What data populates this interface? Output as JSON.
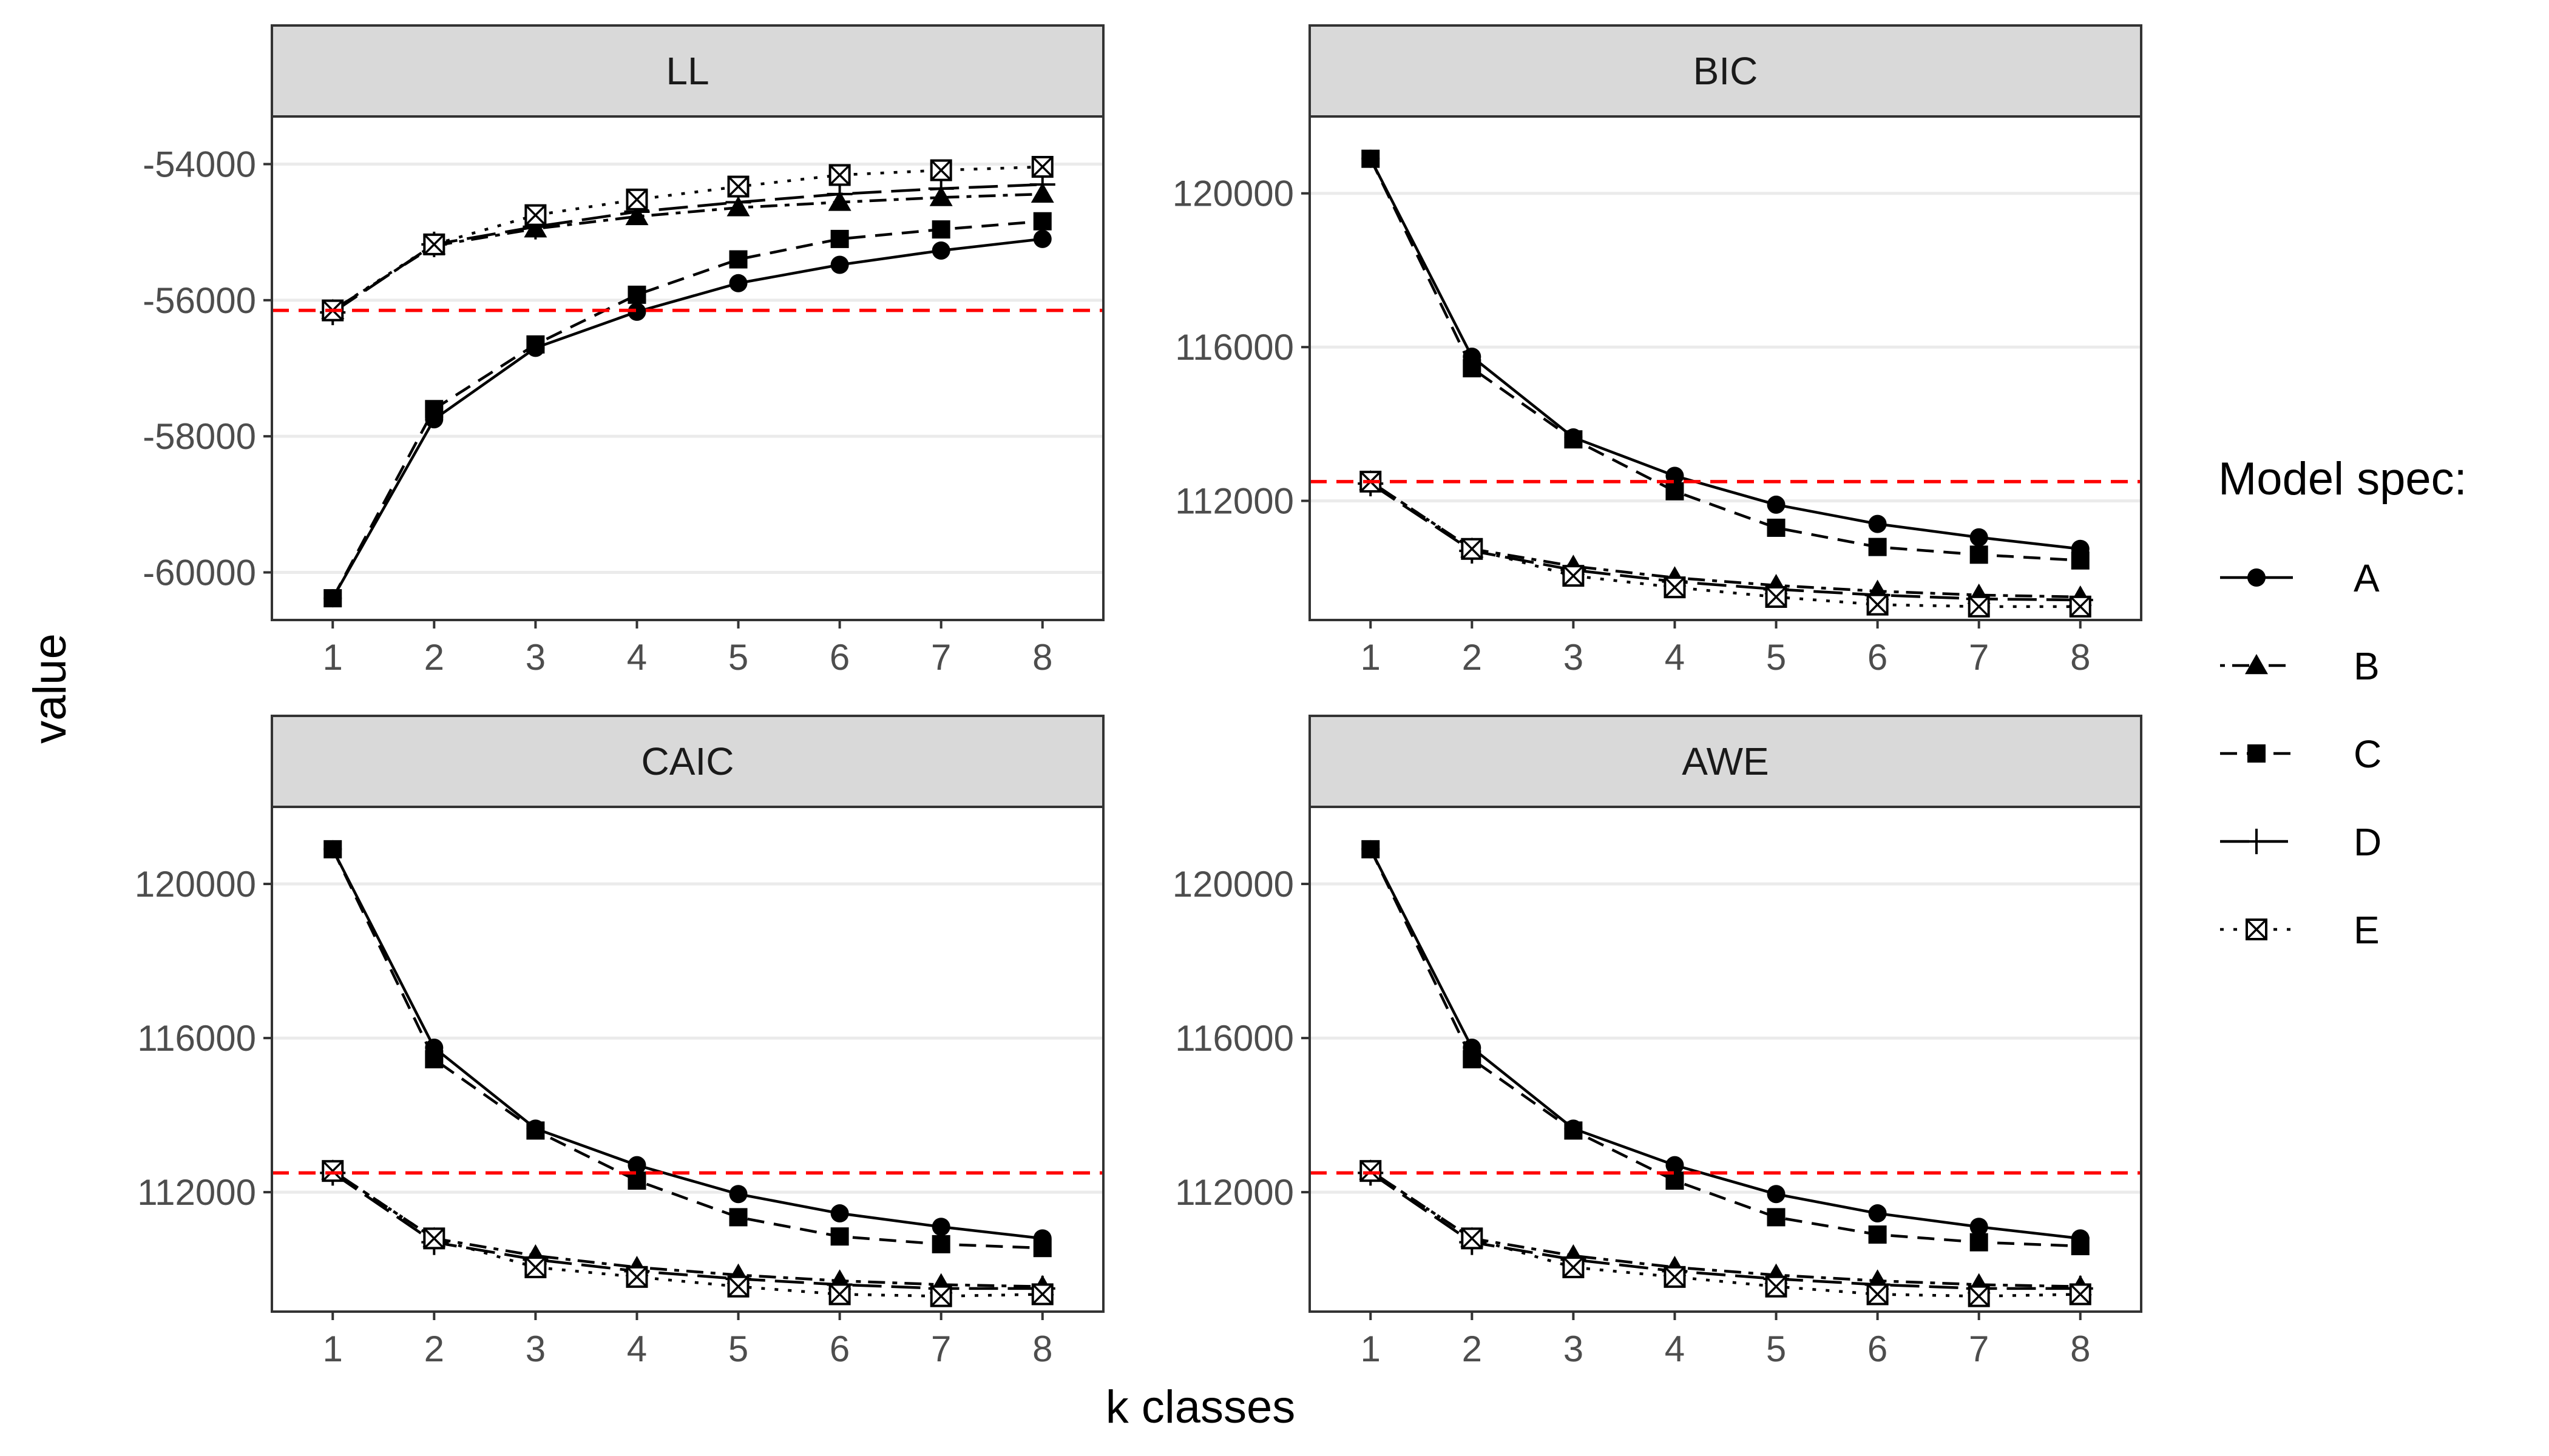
{
  "chart_data": {
    "type": "line",
    "xlabel": "k classes",
    "ylabel": "value",
    "x": [
      1,
      2,
      3,
      4,
      5,
      6,
      7,
      8
    ],
    "legend": {
      "title": "Model spec:",
      "position": "right",
      "entries": [
        "A",
        "B",
        "C",
        "D",
        "E"
      ]
    },
    "reference_line": {
      "color": "#ff0000",
      "style": "dashed"
    },
    "series_styles": {
      "A": {
        "dash": "solid",
        "marker": "circle"
      },
      "B": {
        "dash": "dotdash",
        "marker": "triangle"
      },
      "C": {
        "dash": "dashed",
        "marker": "square"
      },
      "D": {
        "dash": "longdash",
        "marker": "plus"
      },
      "E": {
        "dash": "dotted",
        "marker": "square-cross"
      }
    },
    "panels": [
      {
        "title": "LL",
        "ylim": [
          -60700,
          -53300
        ],
        "yticks": [
          -60000,
          -58000,
          -56000,
          -54000
        ],
        "ytick_labels": [
          "-60000",
          "-58000",
          "-56000",
          "-54000"
        ],
        "reference_y": -56150,
        "series": [
          {
            "name": "A",
            "values": [
              -60380,
              -57750,
              -56700,
              -56170,
              -55750,
              -55480,
              -55270,
              -55100
            ]
          },
          {
            "name": "B",
            "values": [
              -56150,
              -55200,
              -54950,
              -54770,
              -54640,
              -54560,
              -54490,
              -54440
            ]
          },
          {
            "name": "C",
            "values": [
              -60380,
              -57600,
              -56650,
              -55920,
              -55400,
              -55100,
              -54960,
              -54840
            ]
          },
          {
            "name": "D",
            "values": [
              -56180,
              -55180,
              -54920,
              -54700,
              -54560,
              -54440,
              -54360,
              -54300
            ]
          },
          {
            "name": "E",
            "values": [
              -56150,
              -55180,
              -54750,
              -54520,
              -54330,
              -54160,
              -54090,
              -54040
            ]
          }
        ]
      },
      {
        "title": "BIC",
        "ylim": [
          108900,
          122000
        ],
        "yticks": [
          112000,
          116000,
          120000
        ],
        "ytick_labels": [
          "112000",
          "116000",
          "120000"
        ],
        "reference_y": 112500,
        "series": [
          {
            "name": "A",
            "values": [
              120900,
              115750,
              113650,
              112650,
              111900,
              111400,
              111050,
              110750
            ]
          },
          {
            "name": "B",
            "values": [
              112500,
              110750,
              110300,
              110000,
              109800,
              109650,
              109550,
              109500
            ]
          },
          {
            "name": "C",
            "values": [
              120900,
              115450,
              113600,
              112250,
              111300,
              110800,
              110600,
              110450
            ]
          },
          {
            "name": "D",
            "values": [
              112450,
              110700,
              110200,
              109900,
              109700,
              109550,
              109450,
              109420
            ]
          },
          {
            "name": "E",
            "values": [
              112500,
              110750,
              110050,
              109750,
              109500,
              109300,
              109250,
              109250
            ]
          }
        ]
      },
      {
        "title": "CAIC",
        "ylim": [
          108900,
          122000
        ],
        "yticks": [
          112000,
          116000,
          120000
        ],
        "ytick_labels": [
          "112000",
          "116000",
          "120000"
        ],
        "reference_y": 112500,
        "series": [
          {
            "name": "A",
            "values": [
              120900,
              115750,
              113650,
              112700,
              111950,
              111450,
              111100,
              110800
            ]
          },
          {
            "name": "B",
            "values": [
              112550,
              110800,
              110350,
              110050,
              109850,
              109700,
              109600,
              109550
            ]
          },
          {
            "name": "C",
            "values": [
              120900,
              115450,
              113600,
              112300,
              111350,
              110850,
              110650,
              110550
            ]
          },
          {
            "name": "D",
            "values": [
              112500,
              110700,
              110250,
              109950,
              109750,
              109600,
              109500,
              109500
            ]
          },
          {
            "name": "E",
            "values": [
              112550,
              110800,
              110050,
              109800,
              109550,
              109350,
              109300,
              109350
            ]
          }
        ]
      },
      {
        "title": "AWE",
        "ylim": [
          108900,
          122000
        ],
        "yticks": [
          112000,
          116000,
          120000
        ],
        "ytick_labels": [
          "112000",
          "116000",
          "120000"
        ],
        "reference_y": 112500,
        "series": [
          {
            "name": "A",
            "values": [
              120900,
              115750,
              113650,
              112700,
              111950,
              111450,
              111100,
              110800
            ]
          },
          {
            "name": "B",
            "values": [
              112550,
              110800,
              110350,
              110050,
              109850,
              109700,
              109600,
              109550
            ]
          },
          {
            "name": "C",
            "values": [
              120900,
              115450,
              113600,
              112300,
              111350,
              110900,
              110700,
              110600
            ]
          },
          {
            "name": "D",
            "values": [
              112500,
              110700,
              110250,
              109950,
              109750,
              109600,
              109500,
              109500
            ]
          },
          {
            "name": "E",
            "values": [
              112550,
              110800,
              110050,
              109800,
              109550,
              109350,
              109300,
              109350
            ]
          }
        ]
      }
    ]
  }
}
